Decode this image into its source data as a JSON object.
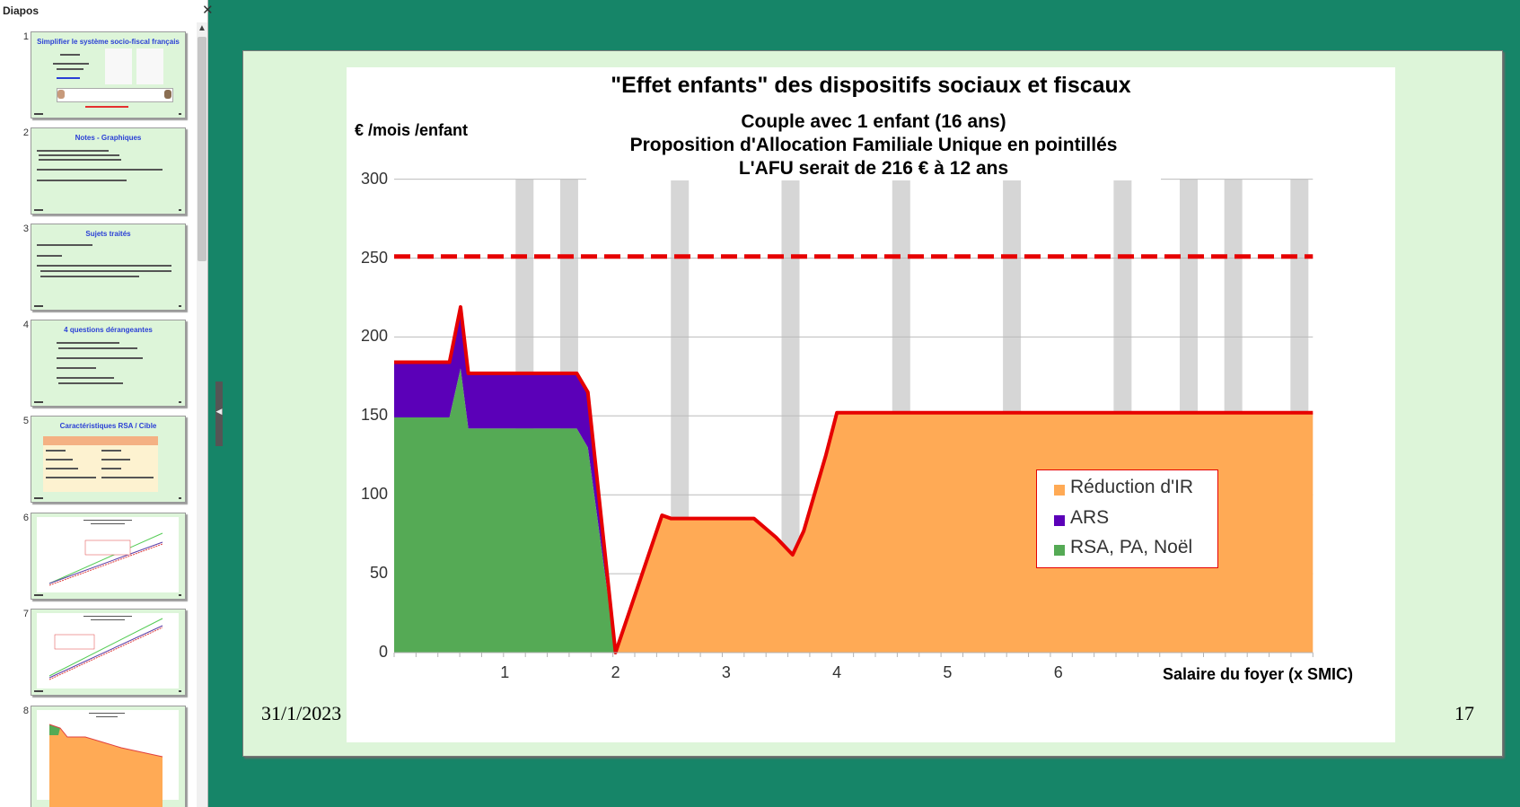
{
  "pane": {
    "title": "Diapos",
    "close_icon": "close-icon",
    "thumbnails": [
      {
        "number": "1",
        "title": "Simplifier le système socio-fiscal français"
      },
      {
        "number": "2",
        "title": "Notes  -  Graphiques"
      },
      {
        "number": "3",
        "title": "Sujets traités"
      },
      {
        "number": "4",
        "title": "4 questions dérangeantes"
      },
      {
        "number": "5",
        "title": "Caractéristiques RSA  /  Cible"
      },
      {
        "number": "6",
        "title": ""
      },
      {
        "number": "7",
        "title": ""
      },
      {
        "number": "8",
        "title": ""
      }
    ]
  },
  "slide": {
    "date": "31/1/2023",
    "number": "17"
  },
  "chart_data": {
    "type": "area",
    "title": "\"Effet enfants\" des dispositifs sociaux et fiscaux",
    "subtitle": [
      "Couple avec 1 enfant (16 ans)",
      "Proposition d'Allocation Familiale Unique en pointillés",
      "L'AFU serait de 216 € à 12 ans"
    ],
    "ylabel": "€ /mois /enfant",
    "xlabel": "Salaire du foyer (x SMIC)",
    "xlim": [
      0,
      8.3
    ],
    "ylim": [
      0,
      300
    ],
    "yticks": [
      "0",
      "50",
      "100",
      "150",
      "200",
      "250",
      "300"
    ],
    "xticks": [
      "1",
      "2",
      "3",
      "4",
      "5",
      "6",
      "7",
      "8"
    ],
    "grid": true,
    "legend_position": "center-right",
    "x": [
      0,
      0.5,
      0.6,
      0.67,
      1.5,
      1.65,
      1.75,
      2.0,
      2.42,
      2.5,
      3.0,
      3.25,
      3.45,
      3.6,
      3.7,
      3.9,
      4.0,
      8.3
    ],
    "series": [
      {
        "name": "Réduction d'IR",
        "color": "#ffaa55",
        "values": [
          0,
          0,
          0,
          0,
          0,
          0,
          0,
          0,
          87,
          85,
          85,
          85,
          73,
          62,
          77,
          125,
          152,
          152
        ]
      },
      {
        "name": "ARS",
        "color": "#5b00b8",
        "values": [
          35,
          35,
          35,
          35,
          35,
          35,
          35,
          0,
          0,
          0,
          0,
          0,
          0,
          0,
          0,
          0,
          0,
          0
        ]
      },
      {
        "name": "RSA, PA, Noël",
        "color": "#55aa55",
        "values": [
          149,
          149,
          180,
          142,
          142,
          142,
          130,
          0,
          0,
          0,
          0,
          0,
          0,
          0,
          0,
          0,
          0,
          0
        ]
      }
    ],
    "total_line": {
      "color": "#e60000",
      "values": [
        184,
        184,
        219,
        177,
        177,
        177,
        165,
        0,
        87,
        85,
        85,
        85,
        73,
        62,
        77,
        125,
        152,
        152
      ]
    },
    "afu_reference": {
      "value": 251,
      "color": "#e60000",
      "style": "dashed"
    }
  }
}
